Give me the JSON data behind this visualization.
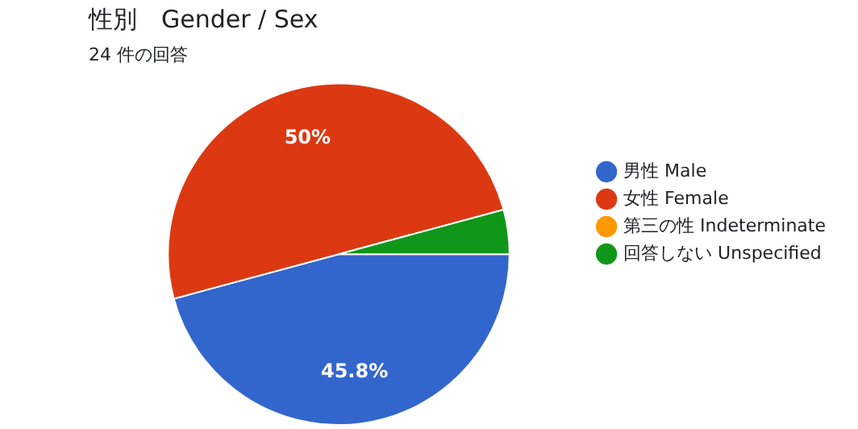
{
  "chart_data": {
    "type": "pie",
    "title": "性別　Gender / Sex",
    "subtitle": "24 件の回答",
    "categories": [
      "男性 Male",
      "女性 Female",
      "第三の性 Indeterminate",
      "回答しない Unspecified"
    ],
    "values": [
      45.8,
      50,
      0,
      4.2
    ],
    "colors": [
      "#3366cc",
      "#dc3912",
      "#ff9900",
      "#109618"
    ],
    "value_labels": [
      "45.8%",
      "50%",
      null,
      null
    ],
    "legend": "right"
  }
}
